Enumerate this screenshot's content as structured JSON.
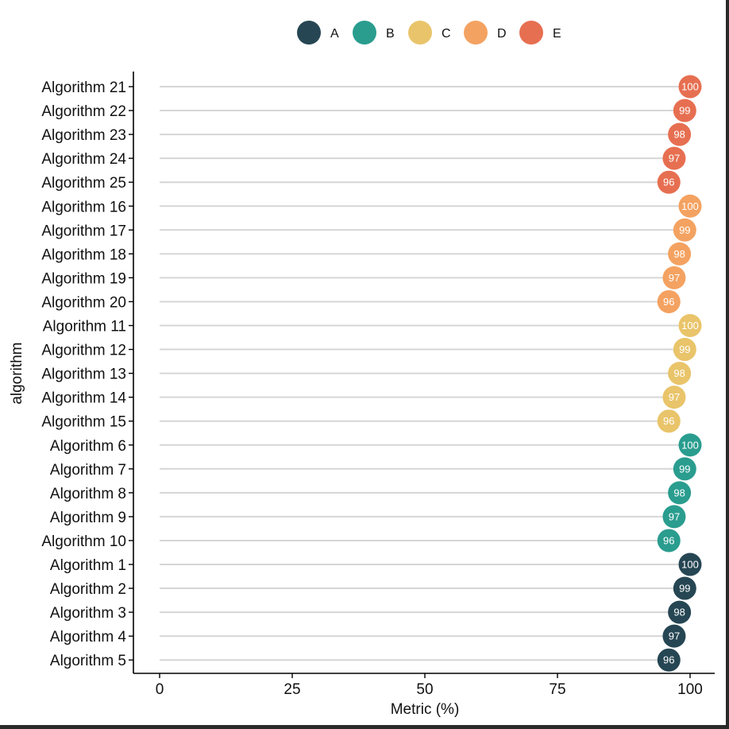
{
  "chart_data": {
    "type": "lollipop",
    "xlabel": "Metric (%)",
    "ylabel": "algorithm",
    "xlim": [
      0,
      100
    ],
    "x_ticks": [
      0,
      25,
      50,
      75,
      100
    ],
    "grid": false,
    "legend": {
      "placement": "top",
      "entries": [
        {
          "name": "A",
          "color": "#264653"
        },
        {
          "name": "B",
          "color": "#2a9d8f"
        },
        {
          "name": "C",
          "color": "#e9c46a"
        },
        {
          "name": "D",
          "color": "#f4a261"
        },
        {
          "name": "E",
          "color": "#e76f51"
        }
      ]
    },
    "points": [
      {
        "label": "Algorithm 21",
        "value": 100,
        "group": "E"
      },
      {
        "label": "Algorithm 22",
        "value": 99,
        "group": "E"
      },
      {
        "label": "Algorithm 23",
        "value": 98,
        "group": "E"
      },
      {
        "label": "Algorithm 24",
        "value": 97,
        "group": "E"
      },
      {
        "label": "Algorithm 25",
        "value": 96,
        "group": "E"
      },
      {
        "label": "Algorithm 16",
        "value": 100,
        "group": "D"
      },
      {
        "label": "Algorithm 17",
        "value": 99,
        "group": "D"
      },
      {
        "label": "Algorithm 18",
        "value": 98,
        "group": "D"
      },
      {
        "label": "Algorithm 19",
        "value": 97,
        "group": "D"
      },
      {
        "label": "Algorithm 20",
        "value": 96,
        "group": "D"
      },
      {
        "label": "Algorithm 11",
        "value": 100,
        "group": "C"
      },
      {
        "label": "Algorithm 12",
        "value": 99,
        "group": "C"
      },
      {
        "label": "Algorithm 13",
        "value": 98,
        "group": "C"
      },
      {
        "label": "Algorithm 14",
        "value": 97,
        "group": "C"
      },
      {
        "label": "Algorithm 15",
        "value": 96,
        "group": "C"
      },
      {
        "label": "Algorithm 6",
        "value": 100,
        "group": "B"
      },
      {
        "label": "Algorithm 7",
        "value": 99,
        "group": "B"
      },
      {
        "label": "Algorithm 8",
        "value": 98,
        "group": "B"
      },
      {
        "label": "Algorithm 9",
        "value": 97,
        "group": "B"
      },
      {
        "label": "Algorithm 10",
        "value": 96,
        "group": "B"
      },
      {
        "label": "Algorithm 1",
        "value": 100,
        "group": "A"
      },
      {
        "label": "Algorithm 2",
        "value": 99,
        "group": "A"
      },
      {
        "label": "Algorithm 3",
        "value": 98,
        "group": "A"
      },
      {
        "label": "Algorithm 4",
        "value": 97,
        "group": "A"
      },
      {
        "label": "Algorithm 5",
        "value": 96,
        "group": "A"
      }
    ]
  }
}
